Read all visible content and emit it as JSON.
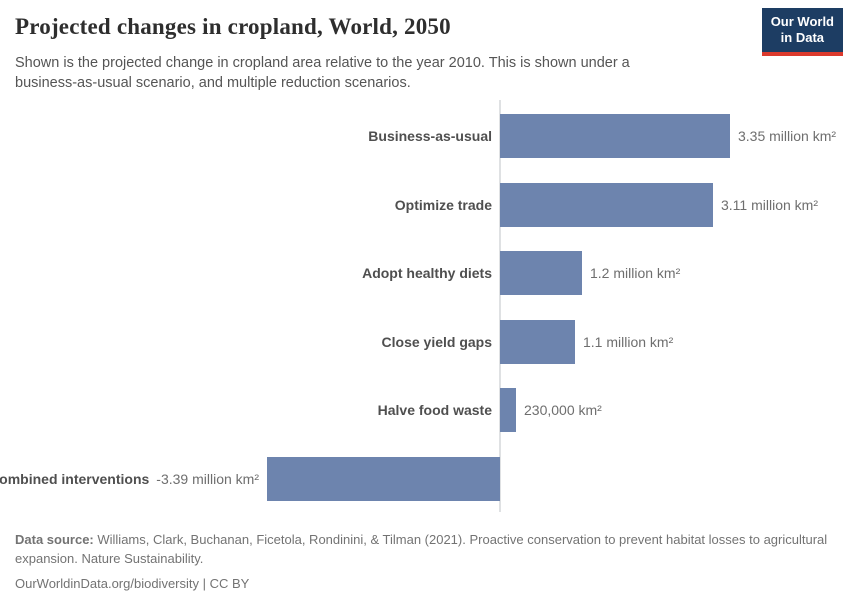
{
  "header": {
    "title": "Projected changes in cropland, World, 2050",
    "subtitle": "Shown is the projected change in cropland area relative to the year 2010. This is shown under a business-as-usual scenario, and multiple reduction scenarios.",
    "logo": {
      "line1": "Our World",
      "line2": "in Data",
      "bg_color": "#1d3d63",
      "accent_color": "#dc3a2d"
    }
  },
  "chart_data": {
    "type": "bar",
    "orientation": "horizontal",
    "title": "Projected changes in cropland, World, 2050",
    "unit": "million km²",
    "categories": [
      "Business-as-usual",
      "Optimize trade",
      "Adopt healthy diets",
      "Close yield gaps",
      "Halve food waste",
      "Combined interventions"
    ],
    "values": [
      3.35,
      3.11,
      1.2,
      1.1,
      0.23,
      -3.39
    ],
    "value_labels": [
      "3.35 million km²",
      "3.11 million km²",
      "1.2 million km²",
      "1.1 million km²",
      "230,000 km²",
      "-3.39 million km²"
    ],
    "xlim": [
      -3.39,
      3.35
    ],
    "bar_color": "#6d84ae",
    "zero_line_color": "#dfe1e3",
    "grid": false,
    "legend": "none"
  },
  "footer": {
    "source_label": "Data source:",
    "source_text": "Williams, Clark, Buchanan, Ficetola, Rondinini, & Tilman (2021). Proactive conservation to prevent habitat losses to agricultural expansion. Nature Sustainability.",
    "license": "OurWorldinData.org/biodiversity | CC BY"
  }
}
